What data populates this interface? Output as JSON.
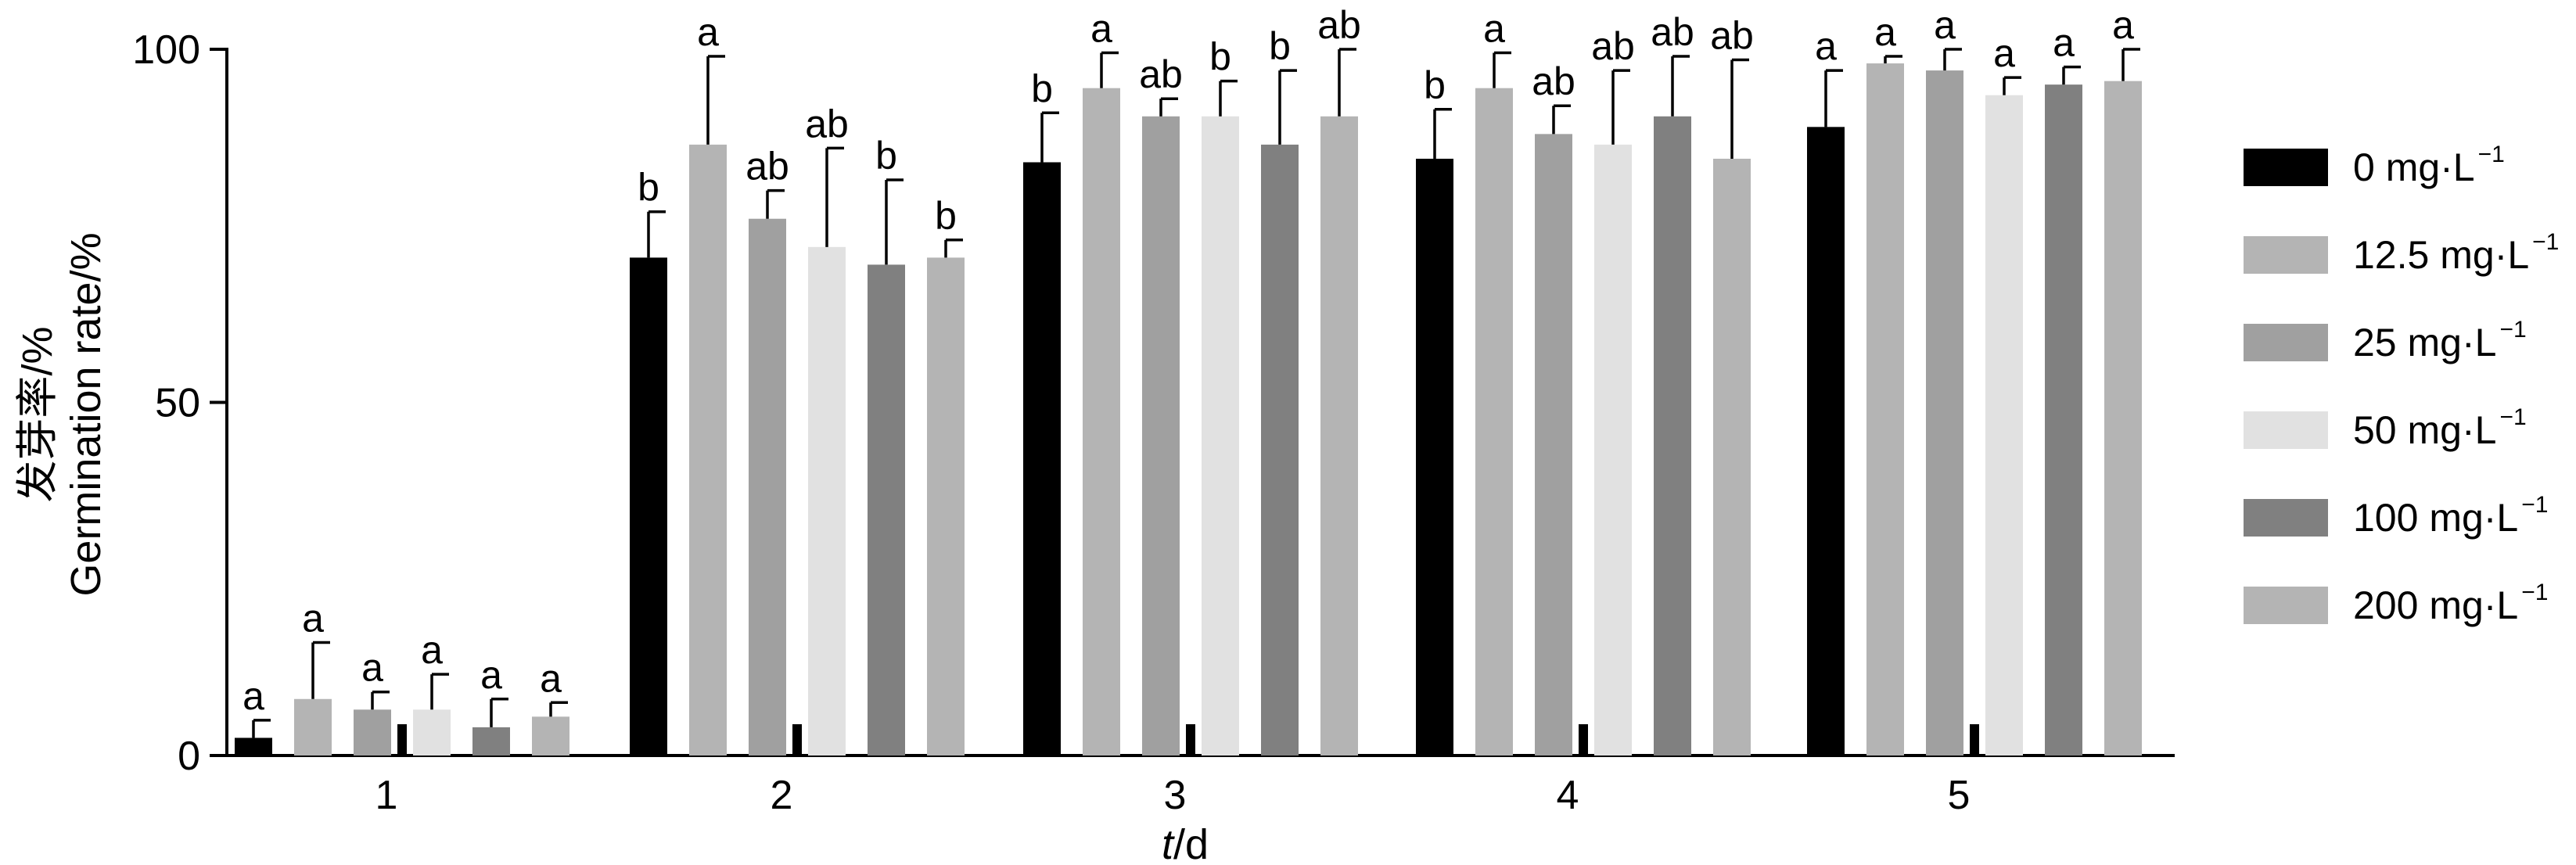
{
  "chart_data": {
    "type": "bar",
    "xlabel_italic": "t",
    "xlabel_rest": "/d",
    "ylabel_line1": "发芽率/%",
    "ylabel_line2": "Germination rate/%",
    "ylim": [
      0,
      100
    ],
    "yticks": [
      "0",
      "50",
      "100"
    ],
    "categories": [
      "1",
      "2",
      "3",
      "4",
      "5"
    ],
    "legend_position": "right",
    "series": [
      {
        "name": "0 mg·L",
        "sup": "−1",
        "color": "#000000",
        "values": [
          2.5,
          70.5,
          84,
          84.5,
          89
        ],
        "errors": [
          2.5,
          6.5,
          7,
          7,
          8
        ],
        "labels": [
          "a",
          "b",
          "b",
          "b",
          "a"
        ]
      },
      {
        "name": "12.5 mg·L",
        "sup": "−1",
        "color": "#b4b4b4",
        "values": [
          8,
          86.5,
          94.5,
          94.5,
          98
        ],
        "errors": [
          8,
          12.5,
          5,
          5,
          1
        ],
        "labels": [
          "a",
          "a",
          "a",
          "a",
          "a"
        ]
      },
      {
        "name": "25 mg·L",
        "sup": "−1",
        "color": "#a0a0a0",
        "values": [
          6.5,
          76,
          90.5,
          88,
          97
        ],
        "errors": [
          2.5,
          4,
          2.5,
          4,
          3
        ],
        "labels": [
          "a",
          "ab",
          "ab",
          "ab",
          "a"
        ]
      },
      {
        "name": "50 mg·L",
        "sup": "−1",
        "color": "#e1e1e1",
        "values": [
          6.5,
          72,
          90.5,
          86.5,
          93.5
        ],
        "errors": [
          5,
          14,
          5,
          10.5,
          2.5
        ],
        "labels": [
          "a",
          "ab",
          "b",
          "ab",
          "a"
        ]
      },
      {
        "name": "100 mg·L",
        "sup": "−1",
        "color": "#808080",
        "values": [
          4,
          69.5,
          86.5,
          90.5,
          95
        ],
        "errors": [
          4,
          12,
          10.5,
          8.5,
          2.5
        ],
        "labels": [
          "a",
          "b",
          "b",
          "ab",
          "a"
        ]
      },
      {
        "name": "200 mg·L",
        "sup": "−1",
        "color": "#b4b4b4",
        "values": [
          5.5,
          70.5,
          90.5,
          84.5,
          95.5
        ],
        "errors": [
          2,
          2.5,
          9.5,
          14,
          4.5
        ],
        "labels": [
          "a",
          "b",
          "ab",
          "ab",
          "a"
        ]
      }
    ],
    "grid": false
  }
}
